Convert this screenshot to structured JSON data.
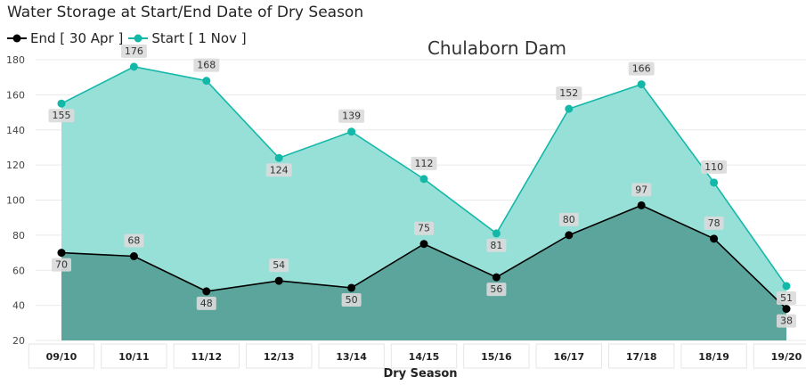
{
  "chart_data": {
    "type": "area",
    "title": "Water Storage at Start/End Date of Dry Season",
    "subtitle": "Chulaborn Dam",
    "xlabel": "Dry Season",
    "ylabel": "",
    "ylim": [
      20,
      180
    ],
    "yticks": [
      20,
      40,
      60,
      80,
      100,
      120,
      140,
      160,
      180
    ],
    "categories": [
      "09/10",
      "10/11",
      "11/12",
      "12/13",
      "13/14",
      "14/15",
      "15/16",
      "16/17",
      "17/18",
      "18/19",
      "19/20"
    ],
    "series": [
      {
        "name": "Start [ 1 Nov ]",
        "color": "#13B8A8",
        "fill": "#96E0D8",
        "values": [
          155,
          176,
          168,
          124,
          139,
          112,
          81,
          152,
          166,
          110,
          51
        ]
      },
      {
        "name": "End [ 30 Apr ]",
        "color": "#000000",
        "fill": "#5BA59C",
        "values": [
          70,
          68,
          48,
          54,
          50,
          75,
          56,
          80,
          97,
          78,
          38
        ]
      }
    ],
    "legend": "top-left",
    "grid": true
  }
}
